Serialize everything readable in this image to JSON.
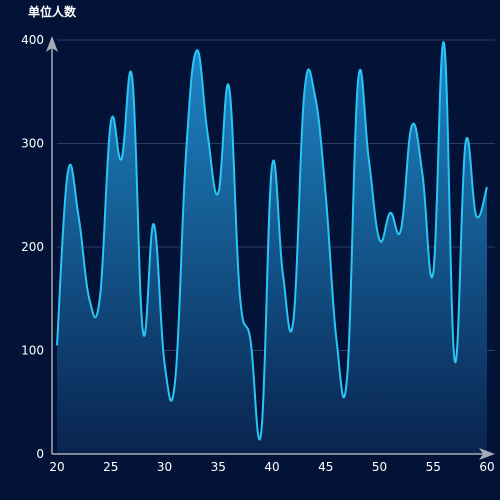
{
  "chart_data": {
    "type": "area",
    "title": "",
    "xlabel": "",
    "ylabel": "单位人数",
    "xlim": [
      20,
      60
    ],
    "ylim": [
      0,
      400
    ],
    "x_ticks": [
      20,
      25,
      30,
      35,
      40,
      45,
      50,
      55,
      60
    ],
    "y_ticks": [
      0,
      100,
      200,
      300,
      400
    ],
    "grid": true,
    "legend": "none",
    "colors": {
      "background": "#031337",
      "line": "#29c6f5",
      "area_top": "#1f8ed0",
      "area_bottom": "#0a2450",
      "grid": "#2a3d66",
      "axis": "#a5acb8",
      "text": "#ffffff"
    },
    "series": [
      {
        "x": [
          20,
          21,
          22,
          23,
          24,
          25,
          26,
          27,
          28,
          29,
          30,
          31,
          32,
          33,
          34,
          35,
          36,
          37,
          38,
          39,
          40,
          41,
          42,
          43,
          44,
          45,
          46,
          47,
          48,
          49,
          50,
          51,
          52,
          53,
          54,
          55,
          56,
          57,
          58,
          59,
          60
        ],
        "values": [
          105,
          272,
          230,
          150,
          152,
          320,
          285,
          363,
          118,
          222,
          88,
          72,
          290,
          390,
          310,
          252,
          355,
          155,
          110,
          21,
          278,
          175,
          130,
          348,
          346,
          250,
          110,
          76,
          360,
          285,
          207,
          233,
          217,
          317,
          270,
          175,
          397,
          90,
          300,
          230,
          258
        ]
      }
    ]
  }
}
